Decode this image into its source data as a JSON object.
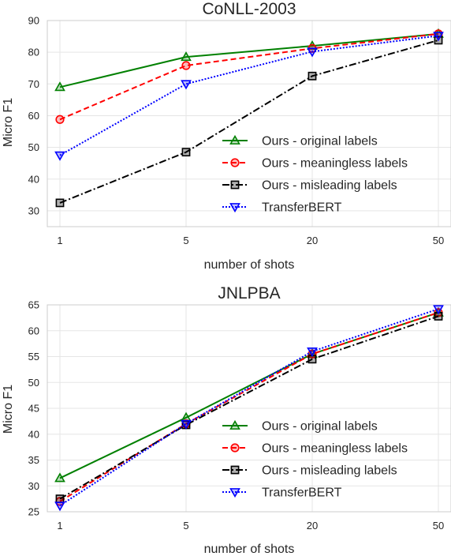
{
  "charts": [
    {
      "type": "line",
      "title": "CoNLL-2003",
      "xlabel": "number of shots",
      "ylabel": "Micro F1",
      "categories": [
        "1",
        "5",
        "20",
        "50"
      ],
      "yticks": [
        "30",
        "40",
        "50",
        "60",
        "70",
        "80",
        "90"
      ],
      "ylim": [
        25,
        90
      ],
      "grid": true,
      "legend": "center-right",
      "series": [
        {
          "name": "Ours - original labels",
          "values": [
            69,
            78.5,
            82,
            85.8
          ]
        },
        {
          "name": "Ours - meaningless labels",
          "values": [
            58.8,
            75.8,
            81.2,
            85.8
          ]
        },
        {
          "name": "Ours - misleading labels",
          "values": [
            32.5,
            48.5,
            72.5,
            83.8
          ]
        },
        {
          "name": "TransferBERT",
          "values": [
            47.5,
            70,
            80.2,
            85.2
          ]
        }
      ]
    },
    {
      "type": "line",
      "title": "JNLPBA",
      "xlabel": "number of shots",
      "ylabel": "Micro F1",
      "categories": [
        "1",
        "5",
        "20",
        "50"
      ],
      "yticks": [
        "25",
        "30",
        "35",
        "40",
        "45",
        "50",
        "55",
        "60",
        "65"
      ],
      "ylim": [
        25,
        65
      ],
      "grid": true,
      "legend": "lower-right",
      "series": [
        {
          "name": "Ours - original labels",
          "values": [
            31.5,
            43.2,
            55.5,
            63.5
          ]
        },
        {
          "name": "Ours - meaningless labels",
          "values": [
            27,
            42,
            55.5,
            63.5
          ]
        },
        {
          "name": "Ours - misleading labels",
          "values": [
            27.5,
            41.8,
            54.5,
            62.8
          ]
        },
        {
          "name": "TransferBERT",
          "values": [
            26.2,
            42,
            56,
            64.2
          ]
        }
      ]
    }
  ],
  "series_styles": [
    {
      "color": "#008000",
      "dash": "",
      "marker": "triangle-up"
    },
    {
      "color": "#ff0000",
      "dash": "7,4",
      "marker": "circle"
    },
    {
      "color": "#000000",
      "dash": "9,3,2,3",
      "marker": "square"
    },
    {
      "color": "#0000ff",
      "dash": "2,2",
      "marker": "triangle-down"
    }
  ]
}
